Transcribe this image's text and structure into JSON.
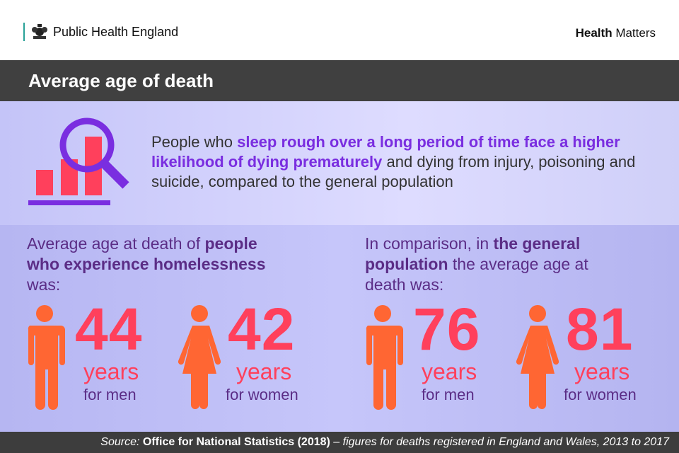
{
  "header": {
    "org": "Public Health England",
    "brand_bold": "Health",
    "brand_rest": " Matters"
  },
  "title": "Average age of death",
  "intro": {
    "pre": "People who ",
    "highlight": "sleep rough over a long period of time face a higher likelihood of dying prematurely",
    "post": " and dying from injury, poisoning and suicide, compared to the general population"
  },
  "homeless": {
    "lead_pre": "Average age at death of ",
    "lead_bold": "people who experience homelessness",
    "lead_post": " was:",
    "men": {
      "value": "44",
      "unit": "years",
      "label": "for men"
    },
    "women": {
      "value": "42",
      "unit": "years",
      "label": "for women"
    }
  },
  "general": {
    "lead_pre": "In comparison, in ",
    "lead_bold": "the general population",
    "lead_post": " the average age at death was:",
    "men": {
      "value": "76",
      "unit": "years",
      "label": "for men"
    },
    "women": {
      "value": "81",
      "unit": "years",
      "label": "for women"
    }
  },
  "footer": {
    "source_label": "Source:",
    "source": "Office for National Statistics (2018)",
    "dash": " – ",
    "note": "figures for deaths registered in England and Wales, 2013 to 2017"
  },
  "colors": {
    "accent_purple": "#7a2ee0",
    "number_red": "#ff405c",
    "figure_orange": "#ff6633",
    "text_purple": "#5b2d86"
  }
}
